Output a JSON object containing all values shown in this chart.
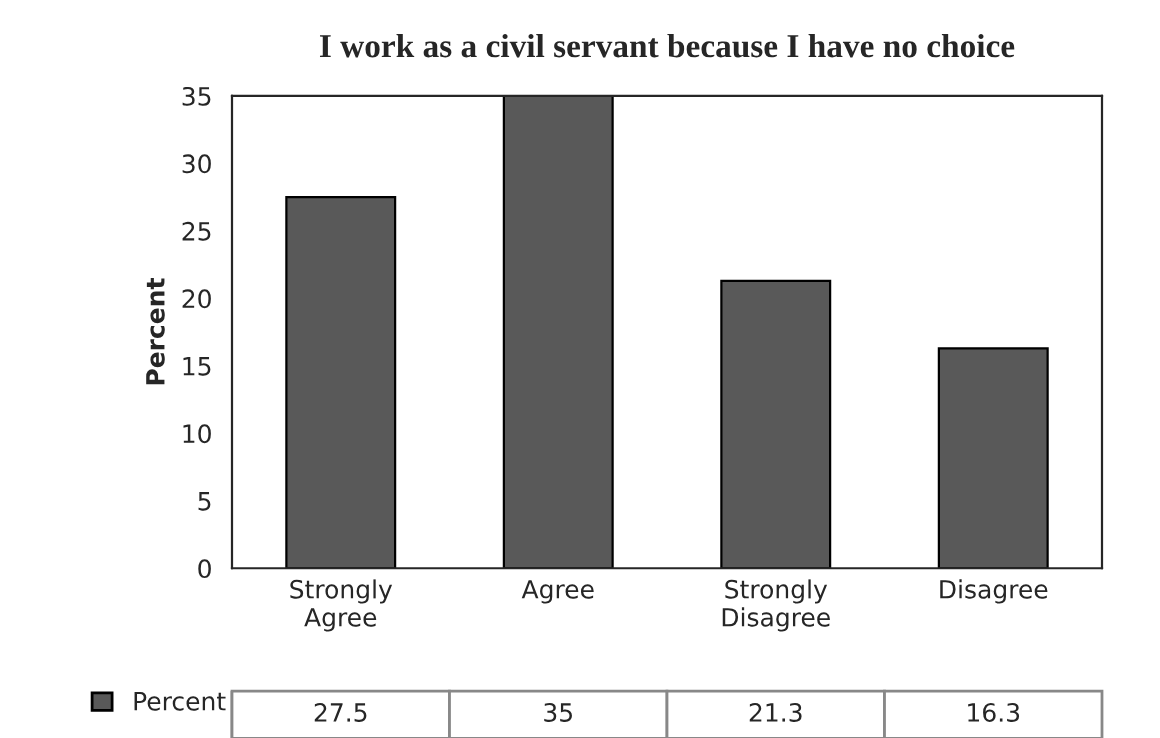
{
  "chart_data": {
    "type": "bar",
    "title": "I work as a civil servant because I have no choice",
    "ylabel": "Percent",
    "categories": [
      "Strongly\nAgree",
      "Agree",
      "Strongly\nDisagree",
      "Disagree"
    ],
    "series": [
      {
        "name": "Percent",
        "color": "#595959",
        "values": [
          27.5,
          35,
          21.3,
          16.3
        ]
      }
    ],
    "ylim": [
      0,
      35
    ],
    "yticks": [
      0,
      5,
      10,
      15,
      20,
      25,
      30,
      35
    ],
    "grid": false,
    "legend": "bottom",
    "data_labels": true
  }
}
